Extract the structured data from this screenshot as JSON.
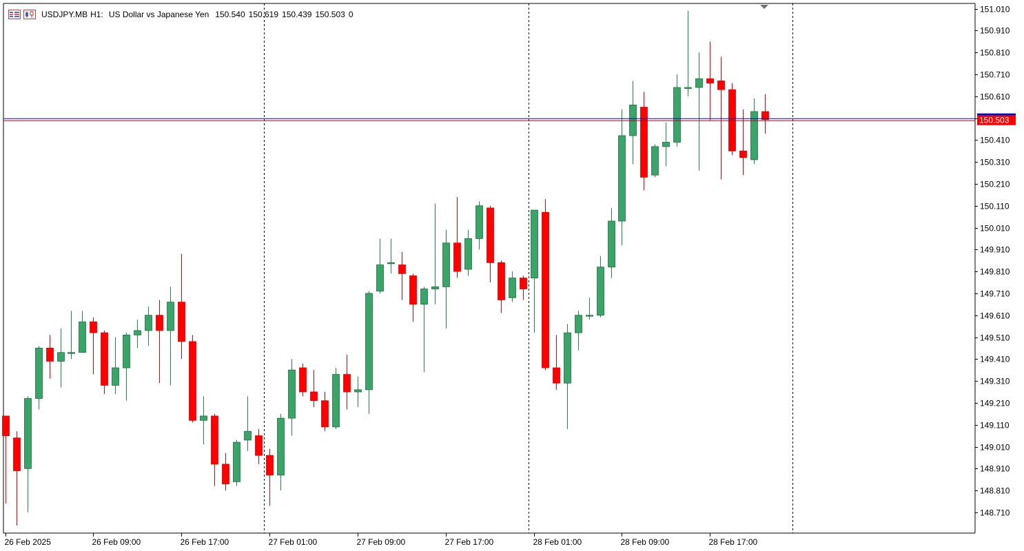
{
  "header": {
    "symbol": "USDJPY.MB",
    "timeframe": "H1:",
    "description": "US Dollar vs Japanese Yen",
    "open": "150.540",
    "high": "150.619",
    "low": "150.439",
    "close": "150.503",
    "volume": "0"
  },
  "colors": {
    "bull": "#3aa46a",
    "bear": "#ff0000",
    "grid_sep": "#000000",
    "bid_line": "#0000cc",
    "ask_line": "#b30000",
    "price_tag_bg": "#ff0000",
    "price_tag_fg": "#ffffff"
  },
  "chart_data": {
    "type": "candlestick",
    "ylim": [
      148.62,
      151.03
    ],
    "y_ticks": [
      "151.010",
      "150.910",
      "150.810",
      "150.710",
      "150.610",
      "150.510",
      "150.410",
      "150.310",
      "150.210",
      "150.110",
      "150.010",
      "149.910",
      "149.810",
      "149.710",
      "149.610",
      "149.510",
      "149.410",
      "149.310",
      "149.210",
      "149.110",
      "149.010",
      "148.910",
      "148.810",
      "148.710"
    ],
    "x_labels": [
      {
        "index": 0,
        "text": "26 Feb 2025"
      },
      {
        "index": 8,
        "text": "26 Feb 09:00"
      },
      {
        "index": 16,
        "text": "26 Feb 17:00"
      },
      {
        "index": 24,
        "text": "27 Feb 01:00"
      },
      {
        "index": 32,
        "text": "27 Feb 09:00"
      },
      {
        "index": 40,
        "text": "27 Feb 17:00"
      },
      {
        "index": 48,
        "text": "28 Feb 01:00"
      },
      {
        "index": 56,
        "text": "28 Feb 09:00"
      },
      {
        "index": 64,
        "text": "28 Feb 17:00"
      }
    ],
    "day_separators": [
      23,
      47,
      71
    ],
    "current_price": "150.503",
    "candles": [
      {
        "o": 149.15,
        "h": 149.15,
        "l": 148.75,
        "c": 149.06
      },
      {
        "o": 149.05,
        "h": 149.08,
        "l": 148.65,
        "c": 148.9
      },
      {
        "o": 148.91,
        "h": 149.24,
        "l": 148.71,
        "c": 149.23
      },
      {
        "o": 149.23,
        "h": 149.47,
        "l": 149.18,
        "c": 149.46
      },
      {
        "o": 149.46,
        "h": 149.52,
        "l": 149.32,
        "c": 149.4
      },
      {
        "o": 149.4,
        "h": 149.55,
        "l": 149.28,
        "c": 149.44
      },
      {
        "o": 149.44,
        "h": 149.63,
        "l": 149.41,
        "c": 149.44
      },
      {
        "o": 149.44,
        "h": 149.63,
        "l": 149.44,
        "c": 149.58
      },
      {
        "o": 149.58,
        "h": 149.6,
        "l": 149.34,
        "c": 149.53
      },
      {
        "o": 149.53,
        "h": 149.54,
        "l": 149.25,
        "c": 149.29
      },
      {
        "o": 149.29,
        "h": 149.51,
        "l": 149.25,
        "c": 149.37
      },
      {
        "o": 149.37,
        "h": 149.53,
        "l": 149.22,
        "c": 149.52
      },
      {
        "o": 149.52,
        "h": 149.59,
        "l": 149.46,
        "c": 149.54
      },
      {
        "o": 149.54,
        "h": 149.65,
        "l": 149.47,
        "c": 149.61
      },
      {
        "o": 149.61,
        "h": 149.68,
        "l": 149.3,
        "c": 149.54
      },
      {
        "o": 149.54,
        "h": 149.74,
        "l": 149.29,
        "c": 149.67
      },
      {
        "o": 149.67,
        "h": 149.89,
        "l": 149.41,
        "c": 149.49
      },
      {
        "o": 149.49,
        "h": 149.52,
        "l": 149.12,
        "c": 149.13
      },
      {
        "o": 149.13,
        "h": 149.24,
        "l": 149.02,
        "c": 149.15
      },
      {
        "o": 149.15,
        "h": 149.16,
        "l": 148.83,
        "c": 148.93
      },
      {
        "o": 148.93,
        "h": 148.98,
        "l": 148.81,
        "c": 148.84
      },
      {
        "o": 148.85,
        "h": 149.04,
        "l": 148.83,
        "c": 149.03
      },
      {
        "o": 149.04,
        "h": 149.24,
        "l": 148.99,
        "c": 149.08
      },
      {
        "o": 149.06,
        "h": 149.09,
        "l": 148.93,
        "c": 148.97
      },
      {
        "o": 148.97,
        "h": 149.0,
        "l": 148.74,
        "c": 148.88
      },
      {
        "o": 148.88,
        "h": 149.16,
        "l": 148.81,
        "c": 149.14
      },
      {
        "o": 149.14,
        "h": 149.41,
        "l": 149.06,
        "c": 149.36
      },
      {
        "o": 149.37,
        "h": 149.39,
        "l": 149.24,
        "c": 149.26
      },
      {
        "o": 149.26,
        "h": 149.36,
        "l": 149.19,
        "c": 149.22
      },
      {
        "o": 149.22,
        "h": 149.26,
        "l": 149.08,
        "c": 149.1
      },
      {
        "o": 149.1,
        "h": 149.37,
        "l": 149.09,
        "c": 149.34
      },
      {
        "o": 149.34,
        "h": 149.43,
        "l": 149.18,
        "c": 149.26
      },
      {
        "o": 149.26,
        "h": 149.33,
        "l": 149.19,
        "c": 149.27
      },
      {
        "o": 149.27,
        "h": 149.72,
        "l": 149.16,
        "c": 149.71
      },
      {
        "o": 149.72,
        "h": 149.96,
        "l": 149.71,
        "c": 149.84
      },
      {
        "o": 149.85,
        "h": 149.96,
        "l": 149.8,
        "c": 149.85
      },
      {
        "o": 149.84,
        "h": 149.9,
        "l": 149.68,
        "c": 149.8
      },
      {
        "o": 149.79,
        "h": 149.8,
        "l": 149.58,
        "c": 149.66
      },
      {
        "o": 149.66,
        "h": 149.74,
        "l": 149.35,
        "c": 149.73
      },
      {
        "o": 149.73,
        "h": 150.12,
        "l": 149.66,
        "c": 149.74
      },
      {
        "o": 149.74,
        "h": 150.0,
        "l": 149.55,
        "c": 149.94
      },
      {
        "o": 149.94,
        "h": 150.15,
        "l": 149.78,
        "c": 149.81
      },
      {
        "o": 149.82,
        "h": 150.0,
        "l": 149.79,
        "c": 149.96
      },
      {
        "o": 149.96,
        "h": 150.13,
        "l": 149.91,
        "c": 150.11
      },
      {
        "o": 150.1,
        "h": 150.11,
        "l": 149.76,
        "c": 149.85
      },
      {
        "o": 149.85,
        "h": 149.86,
        "l": 149.62,
        "c": 149.68
      },
      {
        "o": 149.69,
        "h": 149.81,
        "l": 149.67,
        "c": 149.78
      },
      {
        "o": 149.78,
        "h": 149.79,
        "l": 149.68,
        "c": 149.73
      },
      {
        "o": 149.78,
        "h": 150.09,
        "l": 149.53,
        "c": 150.09
      },
      {
        "o": 150.08,
        "h": 150.14,
        "l": 149.36,
        "c": 149.37
      },
      {
        "o": 149.37,
        "h": 149.52,
        "l": 149.27,
        "c": 149.3
      },
      {
        "o": 149.3,
        "h": 149.57,
        "l": 149.09,
        "c": 149.53
      },
      {
        "o": 149.53,
        "h": 149.63,
        "l": 149.45,
        "c": 149.61
      },
      {
        "o": 149.61,
        "h": 149.69,
        "l": 149.59,
        "c": 149.61
      },
      {
        "o": 149.61,
        "h": 149.88,
        "l": 149.6,
        "c": 149.83
      },
      {
        "o": 149.83,
        "h": 150.1,
        "l": 149.78,
        "c": 150.04
      },
      {
        "o": 150.04,
        "h": 150.55,
        "l": 149.93,
        "c": 150.43
      },
      {
        "o": 150.43,
        "h": 150.68,
        "l": 150.3,
        "c": 150.57
      },
      {
        "o": 150.56,
        "h": 150.63,
        "l": 150.18,
        "c": 150.24
      },
      {
        "o": 150.25,
        "h": 150.39,
        "l": 150.24,
        "c": 150.38
      },
      {
        "o": 150.38,
        "h": 150.49,
        "l": 150.29,
        "c": 150.4
      },
      {
        "o": 150.4,
        "h": 150.71,
        "l": 150.38,
        "c": 150.65
      },
      {
        "o": 150.65,
        "h": 151.0,
        "l": 150.61,
        "c": 150.65
      },
      {
        "o": 150.65,
        "h": 150.81,
        "l": 150.27,
        "c": 150.69
      },
      {
        "o": 150.69,
        "h": 150.86,
        "l": 150.5,
        "c": 150.67
      },
      {
        "o": 150.68,
        "h": 150.79,
        "l": 150.23,
        "c": 150.64
      },
      {
        "o": 150.64,
        "h": 150.67,
        "l": 150.34,
        "c": 150.36
      },
      {
        "o": 150.36,
        "h": 150.55,
        "l": 150.25,
        "c": 150.33
      },
      {
        "o": 150.32,
        "h": 150.6,
        "l": 150.3,
        "c": 150.54
      },
      {
        "o": 150.54,
        "h": 150.619,
        "l": 150.439,
        "c": 150.503
      }
    ]
  }
}
